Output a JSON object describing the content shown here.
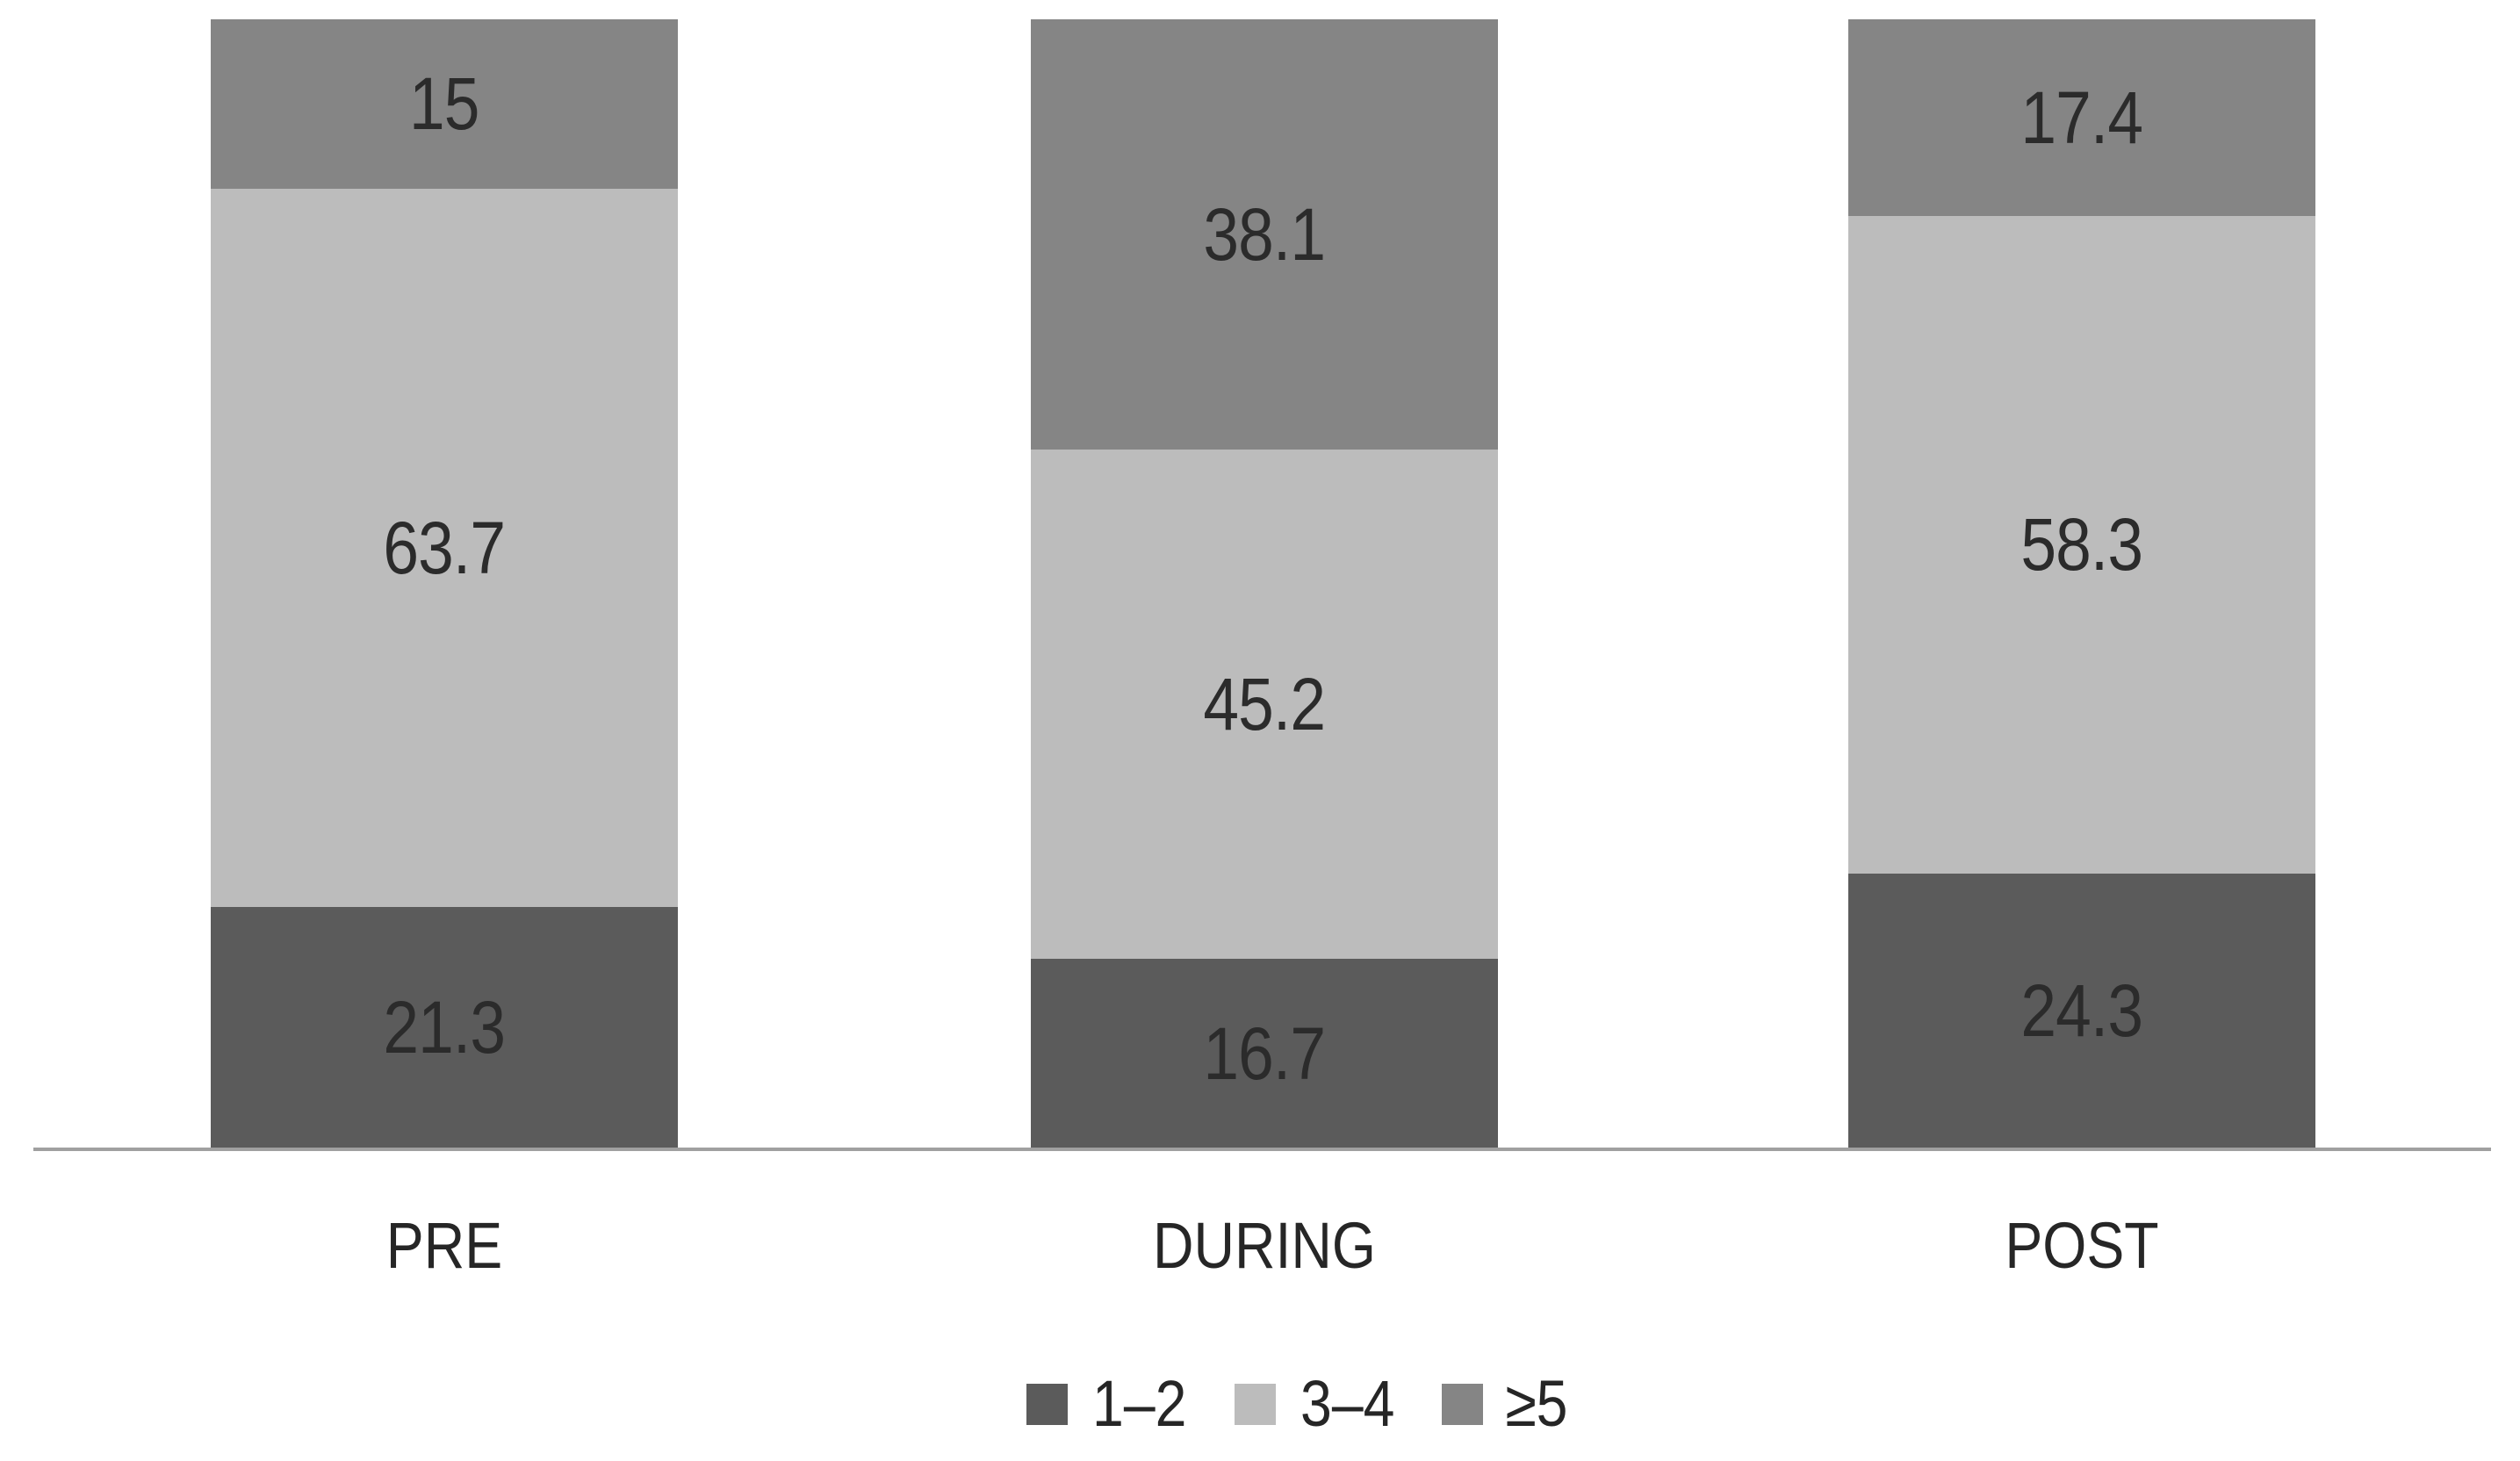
{
  "chart_data": {
    "type": "bar",
    "subtype": "100-percent-stacked-column",
    "title": "",
    "xlabel": "",
    "ylabel": "",
    "ylim": [
      0,
      100
    ],
    "grid": false,
    "legend_position": "bottom",
    "background": "#FFFFFF",
    "axis_line_color": "#A0A0A0",
    "label_color": "#2B2B2B",
    "categories": [
      "PRE",
      "DURING",
      "POST"
    ],
    "series": [
      {
        "name": "1–2",
        "color": "#5B5B5B",
        "values": [
          21.3,
          16.7,
          24.3
        ],
        "labels": [
          "21.3",
          "16.7",
          "24.3"
        ]
      },
      {
        "name": "3–4",
        "color": "#BCBCBC",
        "values": [
          63.7,
          45.2,
          58.3
        ],
        "labels": [
          "63.7",
          "45.2",
          "58.3"
        ]
      },
      {
        "name": "≥5",
        "color": "#858585",
        "values": [
          15,
          38.1,
          17.4
        ],
        "labels": [
          "15",
          "38.1",
          "17.4"
        ]
      }
    ]
  },
  "legend": {
    "items": [
      {
        "label": "1–2",
        "color": "#5B5B5B"
      },
      {
        "label": "3–4",
        "color": "#BCBCBC"
      },
      {
        "label": "≥5",
        "color": "#858585"
      }
    ]
  }
}
